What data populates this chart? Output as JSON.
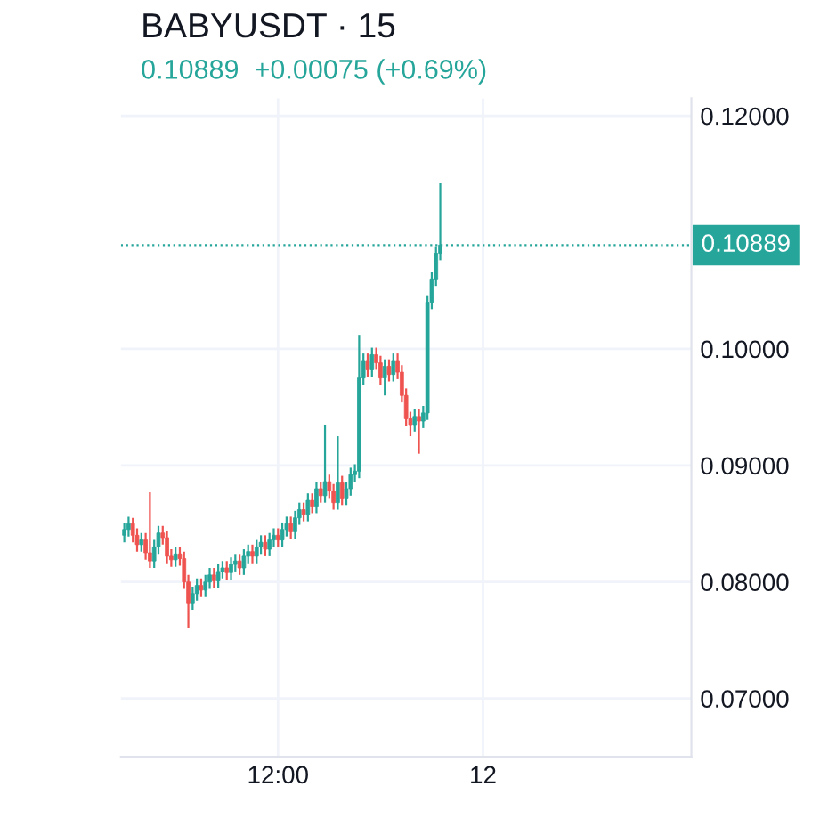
{
  "chart_data": {
    "type": "candlestick",
    "title": "BABYUSDT · 15",
    "subtitle": "0.10889  +0.00075 (+0.69%)",
    "categories": [
      null,
      null,
      null,
      null,
      null,
      null,
      null,
      null,
      null,
      null,
      null,
      null,
      null,
      null,
      null,
      null,
      null,
      null,
      null,
      null,
      null,
      null,
      null,
      null,
      null,
      null,
      null,
      null,
      null,
      null,
      null,
      null,
      null,
      null,
      null,
      null,
      "12:00",
      null,
      null,
      null,
      null,
      null,
      null,
      null,
      null,
      null,
      null,
      null,
      null,
      null,
      null,
      null,
      null,
      null,
      null,
      null,
      null,
      null,
      null,
      null,
      null,
      null,
      null,
      null,
      null,
      null,
      null,
      null,
      null,
      null,
      null,
      null,
      null,
      null,
      null,
      null,
      null,
      null,
      null,
      null,
      null,
      null,
      null,
      null,
      "12",
      null,
      null,
      null,
      null,
      null,
      null,
      null,
      null,
      null,
      null,
      null,
      null,
      null,
      null,
      null,
      null,
      null,
      null,
      null,
      null,
      null,
      null,
      null,
      null,
      null,
      null,
      null,
      null,
      null,
      null,
      null,
      null,
      null,
      null,
      null,
      null,
      null,
      null,
      null,
      null,
      null,
      null,
      null,
      null,
      null,
      null,
      null,
      null
    ],
    "ohlc": [
      [
        0.084,
        0.0851,
        0.0834,
        0.0845
      ],
      [
        0.0845,
        0.0856,
        0.0839,
        0.085
      ],
      [
        0.085,
        0.0855,
        0.0834,
        0.084
      ],
      [
        0.084,
        0.0846,
        0.0826,
        0.0832
      ],
      [
        0.0832,
        0.0842,
        0.0826,
        0.0836
      ],
      [
        0.0836,
        0.0842,
        0.0819,
        0.0825
      ],
      [
        0.0825,
        0.0877,
        0.0812,
        0.0818
      ],
      [
        0.0818,
        0.0836,
        0.0812,
        0.083
      ],
      [
        0.083,
        0.0848,
        0.0824,
        0.0842
      ],
      [
        0.0842,
        0.0848,
        0.0832,
        0.0838
      ],
      [
        0.0838,
        0.0844,
        0.0816,
        0.0822
      ],
      [
        0.0822,
        0.0828,
        0.0813,
        0.0819
      ],
      [
        0.0819,
        0.083,
        0.0813,
        0.0824
      ],
      [
        0.0824,
        0.083,
        0.0814,
        0.082
      ],
      [
        0.082,
        0.0826,
        0.0794,
        0.08
      ],
      [
        0.08,
        0.0806,
        0.076,
        0.0782
      ],
      [
        0.0782,
        0.0796,
        0.0776,
        0.079
      ],
      [
        0.079,
        0.0803,
        0.0784,
        0.0797
      ],
      [
        0.0797,
        0.0803,
        0.0787,
        0.0793
      ],
      [
        0.0793,
        0.0806,
        0.0787,
        0.08
      ],
      [
        0.08,
        0.0812,
        0.0794,
        0.0806
      ],
      [
        0.0806,
        0.0812,
        0.0795,
        0.0801
      ],
      [
        0.0801,
        0.0815,
        0.0795,
        0.0809
      ],
      [
        0.0809,
        0.0818,
        0.0803,
        0.0812
      ],
      [
        0.0812,
        0.0818,
        0.0802,
        0.0808
      ],
      [
        0.0808,
        0.0821,
        0.0802,
        0.0815
      ],
      [
        0.0815,
        0.0824,
        0.0809,
        0.0818
      ],
      [
        0.0818,
        0.0824,
        0.0806,
        0.0812
      ],
      [
        0.0812,
        0.0828,
        0.0806,
        0.0822
      ],
      [
        0.0822,
        0.0832,
        0.0816,
        0.0826
      ],
      [
        0.0826,
        0.0832,
        0.0816,
        0.0822
      ],
      [
        0.0822,
        0.0836,
        0.0816,
        0.083
      ],
      [
        0.083,
        0.084,
        0.0824,
        0.0834
      ],
      [
        0.0834,
        0.084,
        0.0822,
        0.0828
      ],
      [
        0.0828,
        0.0842,
        0.0822,
        0.0836
      ],
      [
        0.0836,
        0.0846,
        0.083,
        0.084
      ],
      [
        0.084,
        0.0846,
        0.083,
        0.0836
      ],
      [
        0.0836,
        0.0851,
        0.083,
        0.0845
      ],
      [
        0.0845,
        0.0856,
        0.0839,
        0.085
      ],
      [
        0.085,
        0.0856,
        0.0837,
        0.0843
      ],
      [
        0.0843,
        0.0861,
        0.0837,
        0.0855
      ],
      [
        0.0855,
        0.0868,
        0.0849,
        0.0862
      ],
      [
        0.0862,
        0.0868,
        0.0852,
        0.0858
      ],
      [
        0.0858,
        0.0876,
        0.0852,
        0.087
      ],
      [
        0.087,
        0.0876,
        0.0859,
        0.0865
      ],
      [
        0.0865,
        0.0886,
        0.0859,
        0.088
      ],
      [
        0.088,
        0.0886,
        0.0868,
        0.0874
      ],
      [
        0.0874,
        0.0935,
        0.0868,
        0.0886
      ],
      [
        0.0886,
        0.0892,
        0.0872,
        0.0878
      ],
      [
        0.0878,
        0.0884,
        0.0862,
        0.0868
      ],
      [
        0.0868,
        0.0925,
        0.0862,
        0.0885
      ],
      [
        0.0885,
        0.0891,
        0.0866,
        0.0872
      ],
      [
        0.0872,
        0.0886,
        0.0866,
        0.088
      ],
      [
        0.088,
        0.0898,
        0.0874,
        0.0892
      ],
      [
        0.0892,
        0.0901,
        0.0886,
        0.0895
      ],
      [
        0.0895,
        0.1012,
        0.0889,
        0.0975
      ],
      [
        0.0975,
        0.0996,
        0.0969,
        0.099
      ],
      [
        0.099,
        0.0996,
        0.0976,
        0.0982
      ],
      [
        0.0982,
        0.1001,
        0.0976,
        0.0995
      ],
      [
        0.0995,
        0.1001,
        0.0982,
        0.0988
      ],
      [
        0.0988,
        0.0994,
        0.0969,
        0.0975
      ],
      [
        0.0975,
        0.0991,
        0.096,
        0.0985
      ],
      [
        0.0985,
        0.0991,
        0.0972,
        0.0978
      ],
      [
        0.0978,
        0.0996,
        0.0972,
        0.099
      ],
      [
        0.099,
        0.0996,
        0.0974,
        0.098
      ],
      [
        0.098,
        0.0986,
        0.0954,
        0.096
      ],
      [
        0.096,
        0.0966,
        0.0934,
        0.094
      ],
      [
        0.094,
        0.0946,
        0.0925,
        0.0935
      ],
      [
        0.0935,
        0.0948,
        0.0929,
        0.0942
      ],
      [
        0.0942,
        0.0948,
        0.091,
        0.0938
      ],
      [
        0.0938,
        0.0951,
        0.0932,
        0.0945
      ],
      [
        0.0945,
        0.1046,
        0.0939,
        0.104
      ],
      [
        0.104,
        0.1066,
        0.1034,
        0.106
      ],
      [
        0.106,
        0.1088,
        0.1054,
        0.1082
      ],
      [
        0.1082,
        0.1142,
        0.1076,
        0.1089
      ],
      null,
      null,
      null,
      null,
      null,
      null,
      null,
      null,
      null,
      null,
      null,
      null,
      null,
      null,
      null,
      null,
      null,
      null,
      null,
      null,
      null,
      null,
      null,
      null,
      null,
      null,
      null,
      null,
      null,
      null,
      null,
      null,
      null,
      null,
      null,
      null,
      null,
      null,
      null,
      null,
      null,
      null,
      null,
      null,
      null,
      null,
      null,
      null,
      null,
      null,
      null,
      null,
      null,
      null,
      null,
      null,
      null,
      null
    ],
    "colors": [
      "#26a69a",
      "#26a69a",
      "#ef5350",
      "#ef5350",
      "#26a69a",
      "#ef5350",
      "#ef5350",
      "#26a69a",
      "#26a69a",
      "#ef5350",
      "#ef5350",
      "#ef5350",
      "#26a69a",
      "#ef5350",
      "#ef5350",
      "#ef5350",
      "#26a69a",
      "#26a69a",
      "#ef5350",
      "#26a69a",
      "#26a69a",
      "#ef5350",
      "#26a69a",
      "#26a69a",
      "#ef5350",
      "#26a69a",
      "#26a69a",
      "#ef5350",
      "#26a69a",
      "#26a69a",
      "#ef5350",
      "#26a69a",
      "#26a69a",
      "#ef5350",
      "#26a69a",
      "#26a69a",
      "#ef5350",
      "#26a69a",
      "#26a69a",
      "#ef5350",
      "#26a69a",
      "#26a69a",
      "#ef5350",
      "#26a69a",
      "#ef5350",
      "#26a69a",
      "#ef5350",
      "#26a69a",
      "#ef5350",
      "#ef5350",
      "#26a69a",
      "#ef5350",
      "#26a69a",
      "#26a69a",
      "#26a69a",
      "#26a69a",
      "#26a69a",
      "#ef5350",
      "#26a69a",
      "#ef5350",
      "#ef5350",
      "#26a69a",
      "#ef5350",
      "#26a69a",
      "#ef5350",
      "#ef5350",
      "#ef5350",
      "#ef5350",
      "#26a69a",
      "#ef5350",
      "#26a69a",
      "#26a69a",
      "#26a69a",
      "#26a69a",
      "#26a69a",
      null,
      null,
      null,
      null,
      null,
      null,
      null,
      null,
      null,
      null,
      null,
      null,
      null,
      null,
      null,
      null,
      null,
      null,
      null,
      null,
      null,
      null,
      null,
      null,
      null,
      null,
      null,
      null,
      null,
      null,
      null,
      null,
      null,
      null,
      null,
      null,
      null,
      null,
      null,
      null,
      null,
      null,
      null,
      null,
      null,
      null,
      null,
      null,
      null,
      null,
      null,
      null,
      null,
      null,
      null,
      null,
      null,
      null
    ],
    "ylim": [
      0.065,
      0.1215
    ],
    "yticks": [
      {
        "value": 0.07,
        "label": "0.07000"
      },
      {
        "value": 0.08,
        "label": "0.08000"
      },
      {
        "value": 0.09,
        "label": "0.09000"
      },
      {
        "value": 0.1,
        "label": "0.10000"
      },
      {
        "value": 0.12,
        "label": "0.12000"
      }
    ],
    "ref_lines": [
      {
        "axis": "y",
        "value": 0.10889,
        "label": "0.10889",
        "color": "#26a69a",
        "line_style": "dotted"
      }
    ],
    "grid": true
  }
}
